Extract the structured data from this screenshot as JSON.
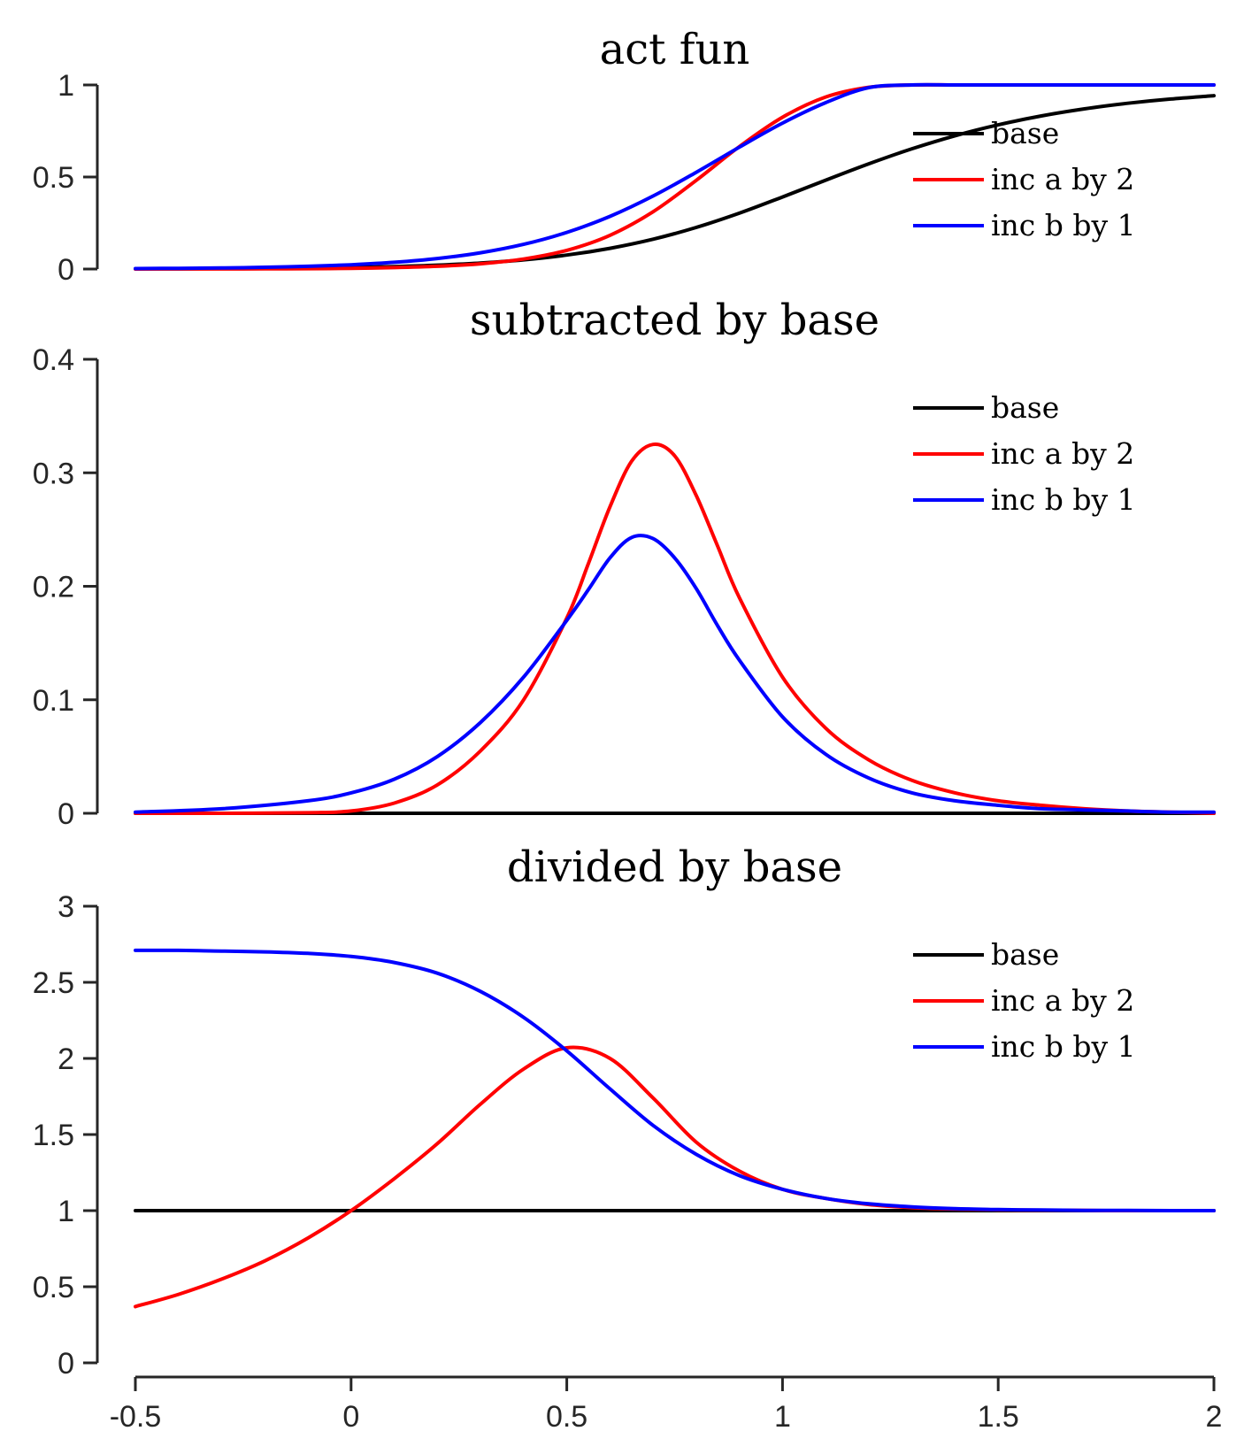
{
  "chart_data": [
    {
      "type": "line",
      "title": "act fun",
      "xlabel": "",
      "ylabel": "",
      "xlim": [
        -0.5,
        2
      ],
      "ylim": [
        0,
        1
      ],
      "yticks": [
        "0",
        "0.5",
        "1"
      ],
      "legend": {
        "placement": "top-right",
        "entries": [
          "base",
          "inc a by 2",
          "inc b by 1"
        ]
      },
      "series": [
        {
          "name": "base",
          "color": "#000000",
          "x": [
            -0.5,
            -0.4,
            -0.3,
            -0.2,
            -0.1,
            0,
            0.1,
            0.2,
            0.3,
            0.4,
            0.5,
            0.6,
            0.7,
            0.8,
            0.9,
            1,
            1.1,
            1.2,
            1.3,
            1.4,
            1.5,
            1.6,
            1.7,
            1.8,
            1.9,
            2
          ],
          "y": [
            0.0009,
            0.0014,
            0.0022,
            0.0035,
            0.0055,
            0.0087,
            0.0136,
            0.0212,
            0.0328,
            0.0502,
            0.0759,
            0.1124,
            0.162,
            0.226,
            0.3036,
            0.3912,
            0.4827,
            0.5717,
            0.6532,
            0.724,
            0.7834,
            0.8318,
            0.8703,
            0.9004,
            0.9237,
            0.9416
          ]
        },
        {
          "name": "inc a by 2",
          "color": "#ff0000",
          "x": [
            -0.5,
            -0.4,
            -0.3,
            -0.2,
            -0.1,
            0,
            0.1,
            0.2,
            0.3,
            0.4,
            0.5,
            0.6,
            0.7,
            0.8,
            0.9,
            1,
            1.1,
            1.2,
            1.3,
            1.4,
            1.5,
            1.6,
            1.7,
            1.8,
            1.9,
            2
          ],
          "y": [
            0.0002,
            0.0003,
            0.0005,
            0.001,
            0.002,
            0.0039,
            0.0076,
            0.0148,
            0.0285,
            0.0544,
            0.1016,
            0.1831,
            0.3112,
            0.4815,
            0.665,
            0.8246,
            0.9345,
            0.9874,
            1.0,
            1.0,
            1.0,
            1.0,
            1.0,
            1.0,
            1.0,
            1.0
          ]
        },
        {
          "name": "inc b by 1",
          "color": "#0000ff",
          "x": [
            -0.5,
            -0.4,
            -0.3,
            -0.2,
            -0.1,
            0,
            0.1,
            0.2,
            0.3,
            0.4,
            0.5,
            0.6,
            0.7,
            0.8,
            0.9,
            1,
            1.1,
            1.2,
            1.3,
            1.4,
            1.5,
            1.6,
            1.7,
            1.8,
            1.9,
            2
          ],
          "y": [
            0.0025,
            0.0038,
            0.006,
            0.0094,
            0.0148,
            0.0233,
            0.0366,
            0.0572,
            0.0883,
            0.1341,
            0.1989,
            0.2862,
            0.3965,
            0.5253,
            0.6621,
            0.7929,
            0.9037,
            0.9856,
            1.0,
            1.0,
            1.0,
            1.0,
            1.0,
            1.0,
            1.0,
            1.0
          ]
        }
      ]
    },
    {
      "type": "line",
      "title": "subtracted by base",
      "xlabel": "",
      "ylabel": "",
      "xlim": [
        -0.5,
        2
      ],
      "ylim": [
        0,
        0.4
      ],
      "yticks": [
        "0",
        "0.1",
        "0.2",
        "0.3",
        "0.4"
      ],
      "legend": {
        "placement": "top-right",
        "entries": [
          "base",
          "inc a by 2",
          "inc b by 1"
        ]
      },
      "series": [
        {
          "name": "base",
          "color": "#000000",
          "x": [
            -0.5,
            2
          ],
          "y": [
            0,
            0
          ]
        },
        {
          "name": "inc a by 2",
          "color": "#ff0000",
          "x": [
            -0.5,
            -0.3,
            -0.1,
            0,
            0.1,
            0.2,
            0.3,
            0.4,
            0.5,
            0.55,
            0.6,
            0.65,
            0.7,
            0.75,
            0.8,
            0.85,
            0.9,
            1,
            1.1,
            1.2,
            1.3,
            1.4,
            1.5,
            1.6,
            1.7,
            1.8,
            1.9,
            2
          ],
          "y": [
            0,
            0,
            0.0005,
            0.002,
            0.009,
            0.025,
            0.055,
            0.1,
            0.172,
            0.22,
            0.27,
            0.31,
            0.325,
            0.315,
            0.28,
            0.235,
            0.19,
            0.12,
            0.075,
            0.047,
            0.029,
            0.018,
            0.011,
            0.007,
            0.004,
            0.002,
            0.001,
            0
          ]
        },
        {
          "name": "inc b by 1",
          "color": "#0000ff",
          "x": [
            -0.5,
            -0.3,
            -0.1,
            0,
            0.1,
            0.2,
            0.3,
            0.4,
            0.5,
            0.55,
            0.6,
            0.65,
            0.7,
            0.75,
            0.8,
            0.85,
            0.9,
            1,
            1.1,
            1.2,
            1.3,
            1.4,
            1.5,
            1.6,
            1.7,
            1.8,
            1.9,
            2
          ],
          "y": [
            0.001,
            0.004,
            0.011,
            0.018,
            0.03,
            0.05,
            0.08,
            0.12,
            0.17,
            0.197,
            0.225,
            0.243,
            0.242,
            0.225,
            0.198,
            0.165,
            0.135,
            0.085,
            0.052,
            0.031,
            0.018,
            0.011,
            0.007,
            0.004,
            0.003,
            0.002,
            0.001,
            0.001
          ]
        }
      ]
    },
    {
      "type": "line",
      "title": "divided by base",
      "xlabel": "",
      "ylabel": "",
      "xlim": [
        -0.5,
        2
      ],
      "ylim": [
        0,
        3
      ],
      "xticks": [
        "-0.5",
        "0",
        "0.5",
        "1",
        "1.5",
        "2"
      ],
      "yticks": [
        "0",
        "0.5",
        "1",
        "1.5",
        "2",
        "2.5",
        "3"
      ],
      "legend": {
        "placement": "top-right",
        "entries": [
          "base",
          "inc a by 2",
          "inc b by 1"
        ]
      },
      "series": [
        {
          "name": "base",
          "color": "#000000",
          "x": [
            -0.5,
            2
          ],
          "y": [
            1,
            1
          ]
        },
        {
          "name": "inc a by 2",
          "color": "#ff0000",
          "x": [
            -0.5,
            -0.4,
            -0.3,
            -0.2,
            -0.1,
            0,
            0.1,
            0.2,
            0.3,
            0.4,
            0.5,
            0.6,
            0.7,
            0.8,
            0.9,
            1,
            1.1,
            1.2,
            1.3,
            1.4,
            1.5,
            1.6,
            1.7,
            1.8,
            1.9,
            2
          ],
          "y": [
            0.37,
            0.45,
            0.55,
            0.67,
            0.82,
            1.0,
            1.21,
            1.44,
            1.7,
            1.93,
            2.07,
            2.0,
            1.74,
            1.45,
            1.26,
            1.14,
            1.08,
            1.04,
            1.02,
            1.01,
            1.005,
            1.003,
            1.001,
            1.0,
            1.0,
            1.0
          ]
        },
        {
          "name": "inc b by 1",
          "color": "#0000ff",
          "x": [
            -0.5,
            -0.4,
            -0.3,
            -0.2,
            -0.1,
            0,
            0.1,
            0.2,
            0.3,
            0.4,
            0.5,
            0.6,
            0.7,
            0.8,
            0.9,
            1,
            1.1,
            1.2,
            1.3,
            1.4,
            1.5,
            1.6,
            1.7,
            1.8,
            1.9,
            2
          ],
          "y": [
            2.71,
            2.71,
            2.705,
            2.7,
            2.69,
            2.67,
            2.63,
            2.56,
            2.44,
            2.27,
            2.05,
            1.8,
            1.56,
            1.37,
            1.23,
            1.14,
            1.08,
            1.045,
            1.025,
            1.013,
            1.007,
            1.004,
            1.002,
            1.001,
            1.0,
            1.0
          ]
        }
      ]
    }
  ]
}
